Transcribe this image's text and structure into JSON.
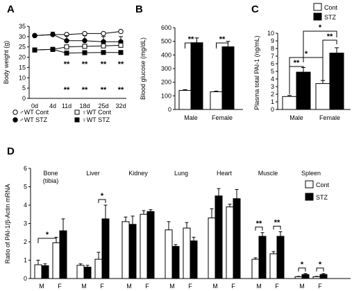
{
  "chart_data": [
    {
      "panel": "A",
      "type": "line",
      "ylabel": "Body weight (g)",
      "ylim": [
        0,
        35
      ],
      "yticks": [
        0,
        5,
        10,
        15,
        20,
        25,
        30,
        35
      ],
      "categories": [
        "0d",
        "4d",
        "11d",
        "18d",
        "25d",
        "32d"
      ],
      "series": [
        {
          "name": "♂WT Cont",
          "marker": "circle",
          "fill": "open",
          "values": [
            30.5,
            31.0,
            31.0,
            31.5,
            31.5,
            32.5
          ]
        },
        {
          "name": "♂WT STZ",
          "marker": "circle",
          "fill": "filled",
          "values": [
            30.5,
            31.0,
            28.0,
            28.0,
            27.5,
            27.5
          ],
          "errors": [
            0.8,
            1.2,
            2.5,
            2.5,
            2.5,
            2.5
          ]
        },
        {
          "name": "♀WT Cont",
          "marker": "square",
          "fill": "open",
          "values": [
            23.5,
            23.8,
            25.0,
            25.3,
            25.5,
            25.8
          ]
        },
        {
          "name": "♀WT STZ",
          "marker": "square",
          "fill": "filled",
          "values": [
            23.5,
            23.8,
            22.0,
            22.2,
            22.3,
            22.3
          ]
        }
      ],
      "annotations": [
        {
          "x": "11d",
          "text": "**"
        },
        {
          "x": "18d",
          "text": "**"
        },
        {
          "x": "25d",
          "text": "**"
        },
        {
          "x": "32d",
          "text": "**"
        },
        {
          "x": "11d",
          "text": "**"
        },
        {
          "x": "18d",
          "text": "**"
        },
        {
          "x": "25d",
          "text": "**"
        },
        {
          "x": "32d",
          "text": "**"
        }
      ],
      "legend": [
        "♂WT Cont",
        "♀WT Cont",
        "♂WT STZ",
        "♀WT STZ"
      ]
    },
    {
      "panel": "B",
      "type": "bar",
      "ylabel": "Blood glucose (mg/dL)",
      "ylim": [
        0,
        600
      ],
      "yticks": [
        0,
        100,
        200,
        300,
        400,
        500,
        600
      ],
      "categories": [
        "Male",
        "Female"
      ],
      "series": [
        {
          "name": "Cont",
          "values": [
            140,
            130
          ],
          "errors": [
            5,
            5
          ]
        },
        {
          "name": "STZ",
          "values": [
            490,
            460
          ],
          "errors": [
            35,
            40
          ]
        }
      ],
      "annotations": [
        {
          "x": "Male",
          "text": "**"
        },
        {
          "x": "Female",
          "text": "**"
        }
      ]
    },
    {
      "panel": "C",
      "type": "bar",
      "ylabel": "Plasma total PAI-1 (ng/mL)",
      "ylim": [
        0,
        10
      ],
      "yticks": [
        0,
        1,
        2,
        3,
        4,
        5,
        6,
        7,
        8,
        9,
        10
      ],
      "categories": [
        "Male",
        "Female"
      ],
      "series": [
        {
          "name": "Cont",
          "values": [
            1.7,
            3.4
          ],
          "errors": [
            0.15,
            0.4
          ]
        },
        {
          "name": "STZ",
          "values": [
            4.9,
            7.4
          ],
          "errors": [
            0.6,
            0.7
          ]
        }
      ],
      "annotations": [
        "**",
        "*",
        "*",
        "**"
      ],
      "legend": [
        "Cont",
        "STZ"
      ]
    },
    {
      "panel": "D",
      "type": "bar",
      "ylabel": "Ratio of PAI-1/β-Actin mRNA",
      "ylim": [
        0,
        6
      ],
      "yticks": [
        0,
        1,
        2,
        3,
        4,
        5,
        6
      ],
      "tissues": [
        {
          "name": "Bone\n(tibia)",
          "cont": [
            0.75,
            1.95
          ],
          "stz": [
            0.7,
            2.6
          ],
          "cont_err": [
            0.25,
            0.3
          ],
          "stz_err": [
            0.1,
            0.65
          ],
          "stars": [
            {
              "text": "*",
              "span": "MF"
            }
          ]
        },
        {
          "name": "Liver",
          "cont": [
            0.72,
            1.05
          ],
          "stz": [
            0.62,
            3.25
          ],
          "cont_err": [
            0.08,
            0.38
          ],
          "stz_err": [
            0.1,
            0.75
          ],
          "stars": [
            {
              "text": "*",
              "span": "F"
            }
          ]
        },
        {
          "name": "Kidney",
          "cont": [
            3.1,
            3.5
          ],
          "stz": [
            2.95,
            3.65
          ],
          "cont_err": [
            0.25,
            0.2
          ],
          "stz_err": [
            0.45,
            0.1
          ],
          "stars": []
        },
        {
          "name": "Lung",
          "cont": [
            2.65,
            2.75
          ],
          "stz": [
            1.75,
            2.05
          ],
          "cont_err": [
            0.45,
            0.3
          ],
          "stz_err": [
            0.1,
            0.2
          ],
          "stars": []
        },
        {
          "name": "Heart",
          "cont": [
            3.3,
            3.9
          ],
          "stz": [
            4.5,
            4.35
          ],
          "cont_err": [
            0.5,
            0.15
          ],
          "stz_err": [
            0.4,
            0.5
          ],
          "stars": []
        },
        {
          "name": "Muscle",
          "cont": [
            1.05,
            1.35
          ],
          "stz": [
            2.3,
            2.3
          ],
          "cont_err": [
            0.08,
            0.12
          ],
          "stz_err": [
            0.2,
            0.25
          ],
          "stars": [
            {
              "text": "**",
              "span": "M"
            },
            {
              "text": "**",
              "span": "F"
            }
          ]
        },
        {
          "name": "Spleen",
          "cont": [
            0.1,
            0.1
          ],
          "stz": [
            0.22,
            0.22
          ],
          "cont_err": [
            0.02,
            0.02
          ],
          "stz_err": [
            0.05,
            0.05
          ],
          "stars": [
            {
              "text": "*",
              "span": "M"
            },
            {
              "text": "*",
              "span": "F"
            }
          ]
        }
      ],
      "sublabels": [
        "M",
        "F"
      ],
      "legend": [
        "Cont",
        "STZ"
      ]
    }
  ],
  "panel_letters": [
    "A",
    "B",
    "C",
    "D"
  ]
}
